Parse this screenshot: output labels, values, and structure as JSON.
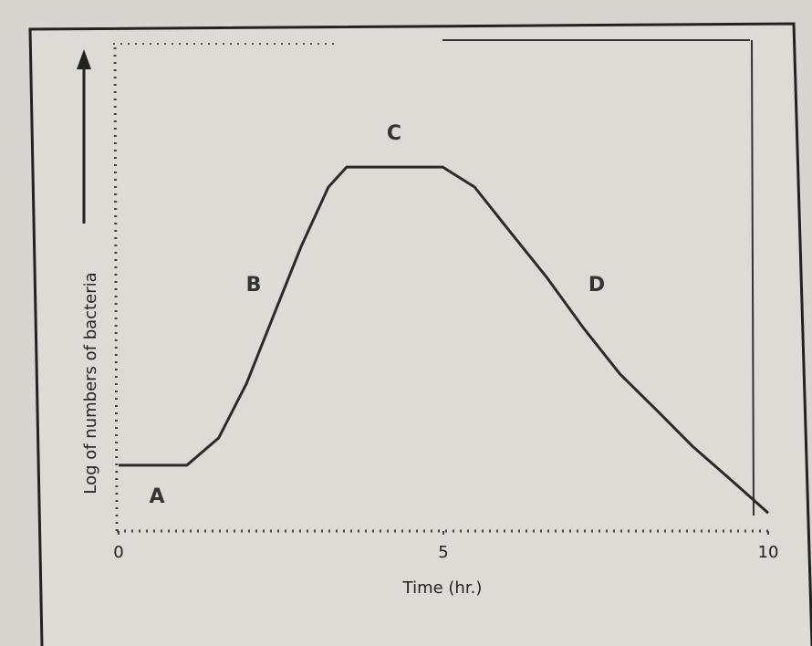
{
  "chart_data": {
    "type": "line",
    "xlabel": "Time (hr.)",
    "ylabel": "Log of numbers of bacteria",
    "annotations": [
      "A",
      "B",
      "C",
      "D"
    ],
    "x": [
      0,
      1.05,
      1.54,
      1.97,
      2.39,
      2.81,
      3.23,
      3.51,
      4.99,
      5.48,
      6.04,
      6.6,
      7.16,
      7.72,
      8.29,
      8.85,
      9.41,
      10
    ],
    "series": [
      {
        "color": "#2a2a2a",
        "values": [
          1.35,
          1.35,
          1.91,
          3.03,
          4.44,
          5.84,
          7.06,
          7.47,
          7.47,
          7.06,
          6.12,
          5.19,
          4.16,
          3.22,
          2.47,
          1.72,
          1.07,
          0.37
        ]
      }
    ],
    "xlim": [
      0,
      10
    ],
    "ylim": [
      0,
      10
    ],
    "xticks": [
      0,
      5,
      10
    ]
  }
}
